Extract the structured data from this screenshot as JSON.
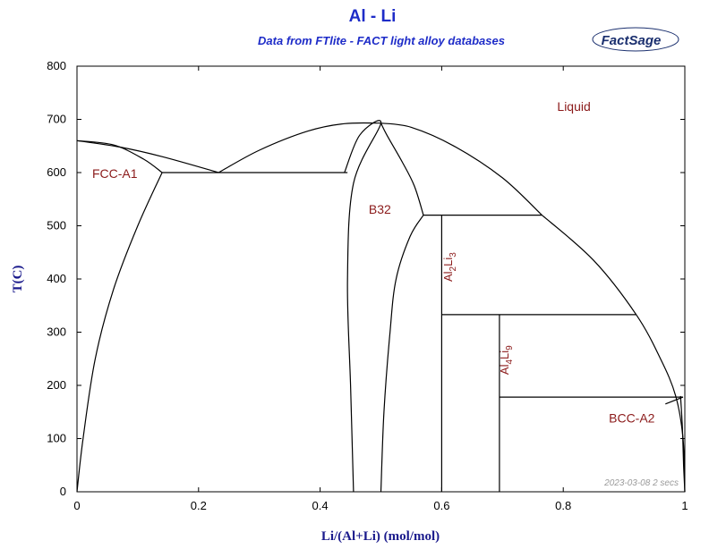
{
  "chart_data": {
    "type": "phase-diagram",
    "title": "Al - Li",
    "subtitle": "Data from FTlite - FACT light alloy databases",
    "logo_text": "FactSage",
    "xlabel": "Li/(Al+Li) (mol/mol)",
    "ylabel": "T(C)",
    "xlim": [
      0,
      1
    ],
    "ylim": [
      0,
      800
    ],
    "xticks": [
      0,
      0.2,
      0.4,
      0.6,
      0.8,
      1
    ],
    "xtick_labels": [
      "0",
      "0.2",
      "0.4",
      "0.6",
      "0.8",
      "1"
    ],
    "yticks": [
      0,
      100,
      200,
      300,
      400,
      500,
      600,
      700,
      800
    ],
    "ytick_labels": [
      "0",
      "100",
      "200",
      "300",
      "400",
      "500",
      "600",
      "700",
      "800"
    ],
    "timestamp": "2023-03-08  2 secs",
    "phase_labels": [
      {
        "text": "Liquid",
        "x": 0.79,
        "y": 716
      },
      {
        "text": "FCC-A1",
        "x": 0.025,
        "y": 590
      },
      {
        "text": "B32",
        "x": 0.48,
        "y": 523
      },
      {
        "text": "BCC-A2",
        "x": 0.875,
        "y": 130
      }
    ],
    "compound_labels": [
      {
        "text": "Al",
        "sub1": "2",
        "mid": "Li",
        "sub2": "3",
        "x": 0.617,
        "y": 395
      },
      {
        "text": "Al",
        "sub1": "4",
        "mid": "Li",
        "sub2": "9",
        "x": 0.71,
        "y": 220
      }
    ],
    "series": [
      {
        "name": "liquidus-al",
        "points": [
          [
            0,
            660
          ],
          [
            0.07,
            648
          ],
          [
            0.14,
            630
          ],
          [
            0.233,
            600
          ]
        ]
      },
      {
        "name": "solidus-fcc",
        "points": [
          [
            0,
            660
          ],
          [
            0.06,
            652
          ],
          [
            0.11,
            625
          ],
          [
            0.14,
            600
          ]
        ]
      },
      {
        "name": "solvus-fcc",
        "points": [
          [
            0.14,
            600
          ],
          [
            0.1,
            500
          ],
          [
            0.06,
            380
          ],
          [
            0.03,
            250
          ],
          [
            0.01,
            100
          ],
          [
            0,
            0
          ]
        ]
      },
      {
        "name": "liquidus-b32-left",
        "points": [
          [
            0.233,
            600
          ],
          [
            0.3,
            642
          ],
          [
            0.38,
            678
          ],
          [
            0.44,
            692
          ],
          [
            0.5,
            693
          ]
        ]
      },
      {
        "name": "b32-left",
        "points": [
          [
            0.44,
            600
          ],
          [
            0.465,
            670
          ],
          [
            0.5,
            693
          ],
          [
            0.455,
            580
          ],
          [
            0.445,
            400
          ],
          [
            0.45,
            200
          ],
          [
            0.455,
            0
          ]
        ]
      },
      {
        "name": "b32-right",
        "points": [
          [
            0.5,
            693
          ],
          [
            0.51,
            670
          ],
          [
            0.535,
            620
          ],
          [
            0.555,
            575
          ],
          [
            0.57,
            520
          ]
        ]
      },
      {
        "name": "b32-solvus-right",
        "points": [
          [
            0.57,
            520
          ],
          [
            0.548,
            480
          ],
          [
            0.525,
            400
          ],
          [
            0.515,
            300
          ],
          [
            0.505,
            150
          ],
          [
            0.5,
            0
          ]
        ]
      },
      {
        "name": "liquidus-b32-right",
        "points": [
          [
            0.5,
            693
          ],
          [
            0.55,
            685
          ],
          [
            0.62,
            650
          ],
          [
            0.7,
            590
          ],
          [
            0.765,
            520
          ]
        ]
      },
      {
        "name": "liquidus-high-li",
        "points": [
          [
            0.765,
            520
          ],
          [
            0.85,
            435
          ],
          [
            0.92,
            333
          ],
          [
            0.96,
            250
          ],
          [
            0.985,
            180
          ],
          [
            0.997,
            100
          ],
          [
            1,
            0
          ]
        ]
      },
      {
        "name": "bcc-solvus",
        "points": [
          [
            0.993,
            180
          ],
          [
            0.996,
            120
          ],
          [
            0.998,
            50
          ],
          [
            1,
            0
          ]
        ]
      },
      {
        "name": "bcc-tangent",
        "points": [
          [
            0.968,
            165
          ],
          [
            0.997,
            178
          ]
        ]
      }
    ],
    "invariants": [
      {
        "name": "fcc-b32-eutectic",
        "x": [
          0.14,
          0.445
        ],
        "y": 600
      },
      {
        "name": "al2li3-peritectic",
        "x": [
          0.57,
          0.765
        ],
        "y": 520
      },
      {
        "name": "al4li9-peritectic",
        "x": [
          0.6,
          0.92
        ],
        "y": 333
      },
      {
        "name": "bcc-eutectic",
        "x": [
          0.695,
          0.997
        ],
        "y": 178
      }
    ],
    "compounds": [
      {
        "name": "Al2Li3",
        "x": 0.6,
        "y_top": 520
      },
      {
        "name": "Al4Li9",
        "x": 0.695,
        "y_top": 333
      }
    ]
  }
}
